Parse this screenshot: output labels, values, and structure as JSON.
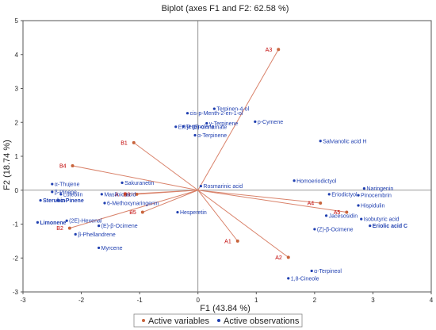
{
  "chart_data": {
    "type": "scatter",
    "title": "Biplot (axes F1 and F2: 62.58 %)",
    "xlabel": "F1 (43.84 %)",
    "ylabel": "F2 (18.74 %)",
    "xlim": [
      -3,
      4
    ],
    "ylim": [
      -3,
      5
    ],
    "xticks": [
      "-3",
      "-2",
      "-1",
      "0",
      "1",
      "2",
      "3",
      "4"
    ],
    "yticks": [
      "-3",
      "-2",
      "-1",
      "0",
      "1",
      "2",
      "3",
      "4",
      "5"
    ],
    "grid": false,
    "legend": {
      "placement": "bottom",
      "items": [
        {
          "label": "Active variables",
          "color": "#c8643c"
        },
        {
          "label": "Active observations",
          "color": "#1f3fb0"
        }
      ]
    },
    "variable_color": "#c00000",
    "vector_color": "#d9826a",
    "observation_color": "#1f3fb0",
    "variables": [
      {
        "name": "A3",
        "x": 1.38,
        "y": 4.15
      },
      {
        "name": "B1",
        "x": -1.1,
        "y": 1.4
      },
      {
        "name": "B4",
        "x": -2.15,
        "y": 0.72
      },
      {
        "name": "A",
        "x": -1.25,
        "y": -0.12
      },
      {
        "name": "B3",
        "x": -1.05,
        "y": -0.12
      },
      {
        "name": "B5",
        "x": -0.95,
        "y": -0.65
      },
      {
        "name": "B2",
        "x": -2.2,
        "y": -1.12
      },
      {
        "name": "A1",
        "x": 0.68,
        "y": -1.5
      },
      {
        "name": "A2",
        "x": 1.55,
        "y": -1.98
      },
      {
        "name": "A4",
        "x": 2.1,
        "y": -0.38
      },
      {
        "name": "A5",
        "x": 2.55,
        "y": -0.65
      }
    ],
    "observations": [
      {
        "name": "cis-p-Menth-2-en-1-ol",
        "x": -0.18,
        "y": 2.27,
        "bold": false
      },
      {
        "name": "Terpinen-4-ol",
        "x": 0.28,
        "y": 2.4,
        "bold": false
      },
      {
        "name": "Terpinolene",
        "x": -0.25,
        "y": 1.88,
        "bold": false
      },
      {
        "name": "γ-Terpinene",
        "x": 0.15,
        "y": 1.97,
        "bold": false
      },
      {
        "name": "Ethyl (E)-cinnamate",
        "x": -0.38,
        "y": 1.87,
        "bold": false
      },
      {
        "name": "α-Terpinene",
        "x": -0.05,
        "y": 1.62,
        "bold": false
      },
      {
        "name": "p-Cymene",
        "x": 0.98,
        "y": 2.02,
        "bold": false
      },
      {
        "name": "Salvianolic acid H",
        "x": 2.1,
        "y": 1.45,
        "bold": false
      },
      {
        "name": "Rosmarinic acid",
        "x": 0.05,
        "y": 0.12,
        "bold": false
      },
      {
        "name": "Homoeriodictyol",
        "x": 1.65,
        "y": 0.28,
        "bold": false
      },
      {
        "name": "Sakuranetin",
        "x": -1.3,
        "y": 0.22,
        "bold": false
      },
      {
        "name": "α-Thujene",
        "x": -2.5,
        "y": 0.18,
        "bold": false
      },
      {
        "name": "β-Pinene",
        "x": -2.5,
        "y": -0.05,
        "bold": false
      },
      {
        "name": "Luteolin",
        "x": -2.35,
        "y": -0.12,
        "bold": false
      },
      {
        "name": "Maslinic acid",
        "x": -1.65,
        "y": -0.12,
        "bold": false
      },
      {
        "name": "Sterubin",
        "x": -2.7,
        "y": -0.3,
        "bold": true
      },
      {
        "name": "α-Pinene",
        "x": -2.4,
        "y": -0.3,
        "bold": true
      },
      {
        "name": "6-Methoxynaringenin",
        "x": -1.6,
        "y": -0.38,
        "bold": false
      },
      {
        "name": "Hesperetin",
        "x": -0.35,
        "y": -0.65,
        "bold": false
      },
      {
        "name": "(2E)-Hexenal",
        "x": -2.25,
        "y": -0.9,
        "bold": false
      },
      {
        "name": "Limonene",
        "x": -2.75,
        "y": -0.95,
        "bold": true
      },
      {
        "name": "(E)-β-Ocimene",
        "x": -1.7,
        "y": -1.05,
        "bold": false
      },
      {
        "name": "β-Phellandrene",
        "x": -2.1,
        "y": -1.3,
        "bold": false
      },
      {
        "name": "Myrcene",
        "x": -1.7,
        "y": -1.7,
        "bold": false
      },
      {
        "name": "Eriodictyol",
        "x": 2.25,
        "y": -0.12,
        "bold": false
      },
      {
        "name": "Naringenin",
        "x": 2.85,
        "y": 0.05,
        "bold": false
      },
      {
        "name": "Pinocembrin",
        "x": 2.75,
        "y": -0.15,
        "bold": false
      },
      {
        "name": "Hispidulin",
        "x": 2.75,
        "y": -0.45,
        "bold": false
      },
      {
        "name": "Jacesosidin",
        "x": 2.2,
        "y": -0.75,
        "bold": false
      },
      {
        "name": "Isobutyric acid",
        "x": 2.8,
        "y": -0.85,
        "bold": false
      },
      {
        "name": "Eriolic acid C",
        "x": 2.95,
        "y": -1.05,
        "bold": true
      },
      {
        "name": "(Z)-β-Ocimene",
        "x": 2.0,
        "y": -1.15,
        "bold": false
      },
      {
        "name": "α-Terpineol",
        "x": 1.95,
        "y": -2.38,
        "bold": false
      },
      {
        "name": "1,8-Cineole",
        "x": 1.55,
        "y": -2.6,
        "bold": false
      }
    ]
  }
}
